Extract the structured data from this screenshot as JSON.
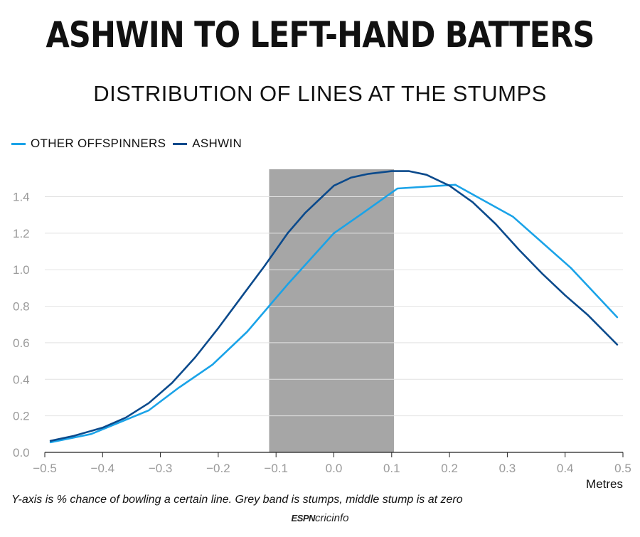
{
  "header": {
    "title": "ASHWIN TO LEFT-HAND BATTERS",
    "subtitle": "DISTRIBUTION OF LINES AT THE STUMPS"
  },
  "footer": {
    "caption": "Y-axis is % chance of bowling a certain line. Grey band is stumps, middle stump is at zero",
    "logo_text_espn": "ESPN",
    "logo_text_cricinfo": "cricinfo"
  },
  "chart_data": {
    "type": "line",
    "xlabel": "Metres",
    "ylabel": "",
    "xlim": [
      -0.5,
      0.5
    ],
    "ylim": [
      0,
      1.55
    ],
    "xticks": [
      -0.5,
      -0.4,
      -0.3,
      -0.2,
      -0.1,
      0.0,
      0.1,
      0.2,
      0.3,
      0.4,
      0.5
    ],
    "xtick_labels": [
      "−0.5",
      "−0.4",
      "−0.3",
      "−0.2",
      "−0.1",
      "0.0",
      "0.1",
      "0.2",
      "0.3",
      "0.4",
      "0.5"
    ],
    "yticks": [
      0.0,
      0.2,
      0.4,
      0.6,
      0.8,
      1.0,
      1.2,
      1.4
    ],
    "ytick_labels": [
      "0.0",
      "0.2",
      "0.4",
      "0.6",
      "0.8",
      "1.0",
      "1.2",
      "1.4"
    ],
    "grid": "horizontal",
    "legend_position": "top-left",
    "band": {
      "x0": -0.112,
      "x1": 0.104,
      "color": "#a6a6a6"
    },
    "series": [
      {
        "name": "OTHER OFFSPINNERS",
        "color": "#1aa3e8",
        "x": [
          -0.49,
          -0.42,
          -0.32,
          -0.27,
          -0.21,
          -0.15,
          -0.08,
          0.0,
          0.05,
          0.11,
          0.21,
          0.31,
          0.41,
          0.49
        ],
        "y": [
          0.055,
          0.1,
          0.23,
          0.35,
          0.48,
          0.66,
          0.92,
          1.2,
          1.31,
          1.445,
          1.465,
          1.29,
          1.01,
          0.74
        ]
      },
      {
        "name": "ASHWIN",
        "color": "#0b4a8c",
        "x": [
          -0.49,
          -0.45,
          -0.4,
          -0.36,
          -0.32,
          -0.28,
          -0.24,
          -0.2,
          -0.16,
          -0.12,
          -0.08,
          -0.05,
          -0.02,
          0.0,
          0.03,
          0.06,
          0.1,
          0.13,
          0.16,
          0.2,
          0.24,
          0.28,
          0.32,
          0.36,
          0.4,
          0.44,
          0.49
        ],
        "y": [
          0.063,
          0.09,
          0.135,
          0.19,
          0.27,
          0.38,
          0.52,
          0.68,
          0.85,
          1.02,
          1.2,
          1.31,
          1.4,
          1.46,
          1.505,
          1.525,
          1.54,
          1.54,
          1.52,
          1.46,
          1.37,
          1.25,
          1.11,
          0.98,
          0.86,
          0.75,
          0.59
        ]
      }
    ]
  }
}
